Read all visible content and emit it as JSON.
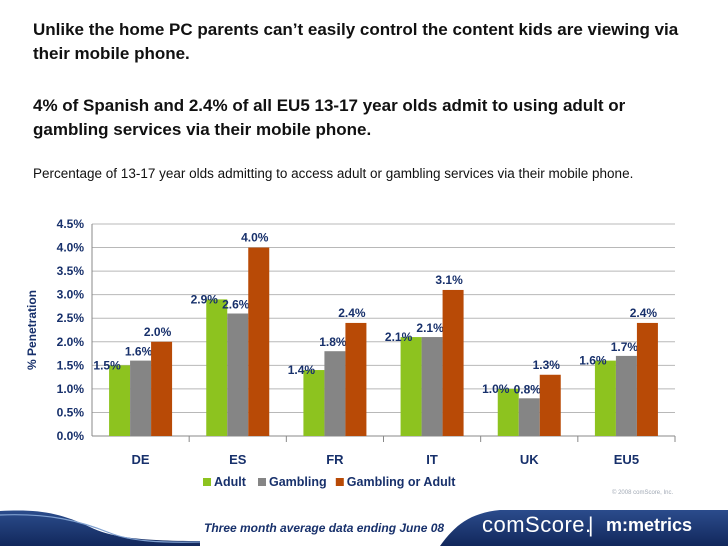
{
  "headline1": "Unlike the home PC parents can’t easily control the content kids are viewing via their mobile phone.",
  "headline2": "4% of Spanish and 2.4% of all EU5 13-17 year olds admit to using adult or gambling services via their mobile phone.",
  "subtitle": "Percentage of 13-17 year olds admitting to access adult or gambling services via their mobile phone.",
  "colors": {
    "adult": "#8dc31f",
    "gambling": "#858585",
    "gambling_or_adult": "#b84a06"
  },
  "chart_data": {
    "type": "bar",
    "categories": [
      "DE",
      "ES",
      "FR",
      "IT",
      "UK",
      "EU5"
    ],
    "series": [
      {
        "name": "Adult",
        "values": [
          1.5,
          2.9,
          1.4,
          2.1,
          1.0,
          1.6
        ],
        "labels": [
          "1.5%",
          "2.9%",
          "1.4%",
          "2.1%",
          "1.0%",
          "1.6%"
        ]
      },
      {
        "name": "Gambling",
        "values": [
          1.6,
          2.6,
          1.8,
          2.1,
          0.8,
          1.7
        ],
        "labels": [
          "1.6%",
          "2.6%",
          "1.8%",
          "2.1%",
          "0.8%",
          "1.7%"
        ]
      },
      {
        "name": "Gambling or Adult",
        "values": [
          2.0,
          4.0,
          2.4,
          3.1,
          1.3,
          2.4
        ],
        "labels": [
          "2.0%",
          "4.0%",
          "2.4%",
          "3.1%",
          "1.3%",
          "2.4%"
        ]
      }
    ],
    "ylabel": "% Penetration",
    "xlabel": "",
    "ylim": [
      0,
      4.5
    ],
    "yticks": [
      "0.0%",
      "0.5%",
      "1.0%",
      "1.5%",
      "2.0%",
      "2.5%",
      "3.0%",
      "3.5%",
      "4.0%",
      "4.5%"
    ],
    "legend_position": "bottom",
    "grid": true
  },
  "copyright": "© 2008 comScore, Inc.",
  "footer": {
    "note": "Three month average data ending June 08",
    "brand": "comScore.",
    "separator": "|",
    "product": "m:metrics"
  }
}
